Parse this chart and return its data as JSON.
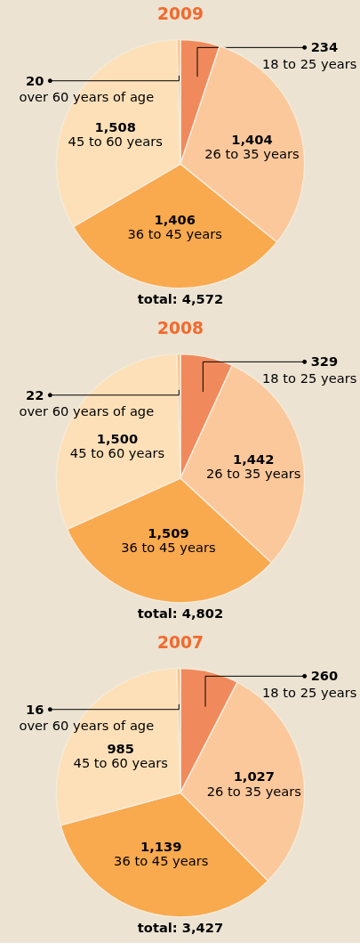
{
  "chart_data": [
    {
      "type": "pie",
      "title": "2009",
      "categories": [
        "18 to 25 years",
        "26 to 35 years",
        "36 to 45 years",
        "45 to 60 years",
        "over 60 years of age"
      ],
      "values": [
        234,
        1404,
        1406,
        1508,
        20
      ],
      "value_labels": [
        "234",
        "1,404",
        "1,406",
        "1,508",
        "20"
      ],
      "colors": [
        "#f08a5c",
        "#fbc89c",
        "#f9a94e",
        "#fde0b8",
        "#f6c48f"
      ],
      "annotations": [
        "total: 4,572"
      ]
    },
    {
      "type": "pie",
      "title": "2008",
      "categories": [
        "18 to 25 years",
        "26 to 35 years",
        "36 to 45 years",
        "45 to 60 years",
        "over 60 years of age"
      ],
      "values": [
        329,
        1442,
        1509,
        1500,
        22
      ],
      "value_labels": [
        "329",
        "1,442",
        "1,509",
        "1,500",
        "22"
      ],
      "colors": [
        "#f08a5c",
        "#fbc89c",
        "#f9a94e",
        "#fde0b8",
        "#f6c48f"
      ],
      "annotations": [
        "total: 4,802"
      ]
    },
    {
      "type": "pie",
      "title": "2007",
      "categories": [
        "18 to 25 years",
        "26 to 35 years",
        "36 to 45 years",
        "45 to 60 years",
        "over 60 years of age"
      ],
      "values": [
        260,
        1027,
        1139,
        985,
        16
      ],
      "value_labels": [
        "260",
        "1,027",
        "1,139",
        "985",
        "16"
      ],
      "colors": [
        "#f08a5c",
        "#fbc89c",
        "#f9a94e",
        "#fde0b8",
        "#f6c48f"
      ],
      "annotations": [
        "total: 3,427"
      ]
    }
  ]
}
